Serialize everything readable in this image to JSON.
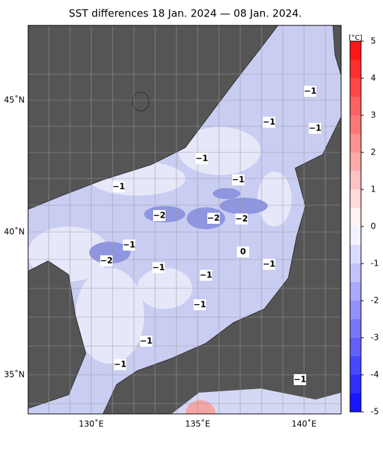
{
  "title": "SST differences 18 Jan. 2024 — 08 Jan. 2024.",
  "latitude_labels": [
    "45˚N",
    "40˚N",
    "35˚N"
  ],
  "longitude_labels": [
    "130˚E",
    "135˚E",
    "140˚E"
  ],
  "colorbar": {
    "unit": "[°C]",
    "ticks": [
      5,
      4,
      3,
      2,
      1,
      0,
      -1,
      -2,
      -3,
      -4,
      -5
    ]
  },
  "contour_labels": [
    "−1",
    "−1",
    "−1",
    "−1",
    "−1",
    "−1",
    "−2",
    "−2",
    "−2",
    "−1",
    "−2",
    "0",
    "−1",
    "−1",
    "−1",
    "−1",
    "−1",
    "−1",
    "−1"
  ]
}
